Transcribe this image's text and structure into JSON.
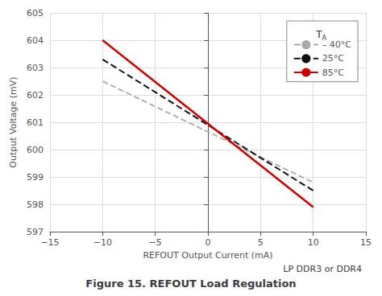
{
  "chart_data": {
    "type": "line",
    "title": "Figure 15. REFOUT Load Regulation",
    "subtitle": "LP DDR3 or DDR4",
    "x_label": "REFOUT Output Current (mA)",
    "y_label": "Output Voltage (mV)",
    "legend_title": "T",
    "legend_title_sub": "A",
    "x": [
      -10,
      10
    ],
    "series": [
      {
        "name": "– 40°C",
        "color": "#aaaaaa",
        "line_style": "dashed",
        "values": [
          602.5,
          598.8
        ]
      },
      {
        "name": "25°C",
        "color": "#111111",
        "line_style": "dashed",
        "values": [
          603.3,
          598.5
        ]
      },
      {
        "name": "85°C",
        "color": "#cc0000",
        "line_style": "solid",
        "values": [
          604.0,
          597.9
        ]
      }
    ],
    "xlim": [
      -15,
      15
    ],
    "xticks": [
      {
        "value": -15,
        "label": "−15"
      },
      {
        "value": -10,
        "label": "−10"
      },
      {
        "value": -5,
        "label": "−5"
      },
      0,
      5,
      10,
      15
    ],
    "ylim": [
      597,
      605
    ],
    "yticks": [
      597,
      598,
      599,
      600,
      601,
      602,
      603,
      604,
      605
    ],
    "grid": true,
    "legend": "upper right"
  }
}
